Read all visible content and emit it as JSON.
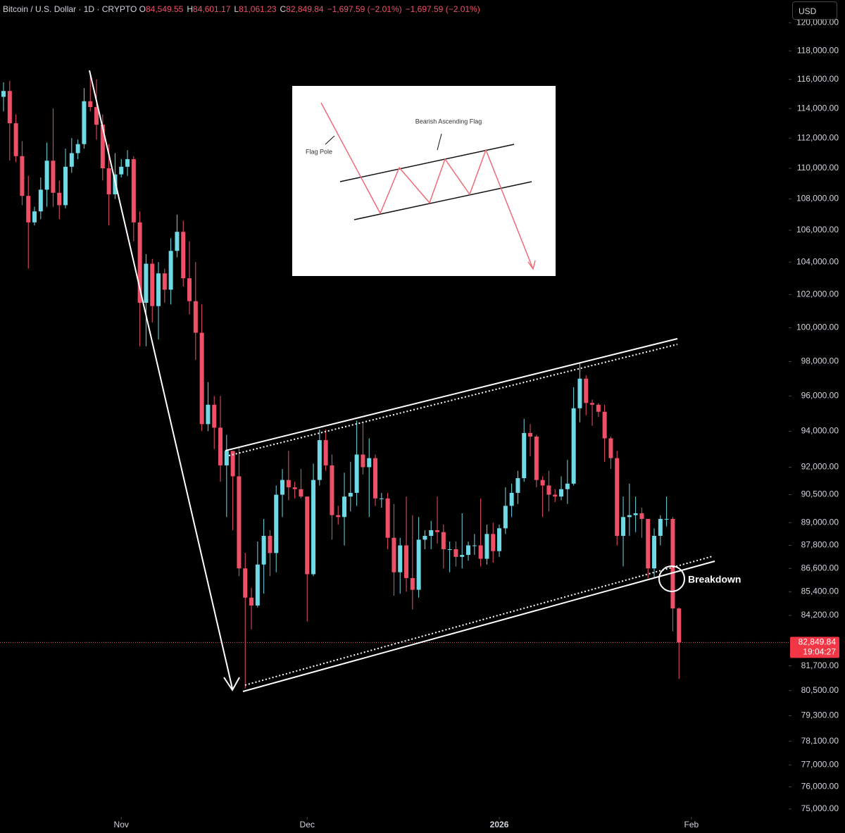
{
  "chart_data": {
    "type": "candlestick",
    "symbol": "Bitcoin / U.S. Dollar · 1D · CRYPTO",
    "ohlc_legend": [
      {
        "key": "O",
        "label": "84,549.55"
      },
      {
        "key": "H",
        "label": "84,601.17"
      },
      {
        "key": "L",
        "label": "81,061.23"
      },
      {
        "key": "C",
        "label": "82,849.84"
      }
    ],
    "change": [
      "−1,697.59 (−2.01%)",
      "−1,697.59 (−2.01%)"
    ],
    "currency": "USD",
    "last_price_label": "82,849.84",
    "countdown": "19:04:27",
    "up_color": "#6fd9e6",
    "down_color": "#ef5068",
    "log_scale": true,
    "grid": false,
    "open": [
      114800,
      115200,
      113000,
      110800,
      108200,
      106500,
      107200,
      108600,
      110500,
      108400,
      107600,
      110100,
      111000,
      111600,
      114500,
      114100,
      112900,
      110000,
      108300,
      109600,
      110100,
      110600,
      106500,
      101500,
      103900,
      101300,
      103300,
      102300,
      104700,
      105900,
      103000,
      101600,
      99700,
      94400,
      95500,
      94200,
      92100,
      92900,
      91500,
      86600,
      85100,
      84700,
      86800,
      88300,
      87400,
      90500,
      91300,
      90900,
      90800,
      90400,
      86300,
      91300,
      93500,
      92100,
      89400,
      89300,
      90400,
      90600,
      92700,
      92000,
      92500,
      90300,
      90300,
      88200,
      86400,
      87800,
      86100,
      85500,
      88100,
      88300,
      88600,
      88500,
      87600,
      87600,
      87200,
      87300,
      87800,
      87800,
      87100,
      88400,
      87500,
      88700,
      89900,
      90600,
      91400,
      93900,
      93700,
      91300,
      91000,
      90500,
      90400,
      90800,
      91100,
      95300,
      97000,
      95600,
      95500,
      95100,
      93600,
      92500,
      88300,
      89300,
      89400,
      89500,
      89200,
      86600,
      88300,
      89200,
      89200,
      84549.55
    ],
    "high": [
      115800,
      115900,
      113600,
      111800,
      109500,
      107500,
      109400,
      111700,
      114000,
      109200,
      111300,
      112000,
      111900,
      115400,
      116400,
      116000,
      113600,
      111600,
      111000,
      110600,
      111200,
      110800,
      107200,
      104500,
      104200,
      104000,
      103600,
      105500,
      107000,
      106600,
      105300,
      104000,
      101400,
      96800,
      96000,
      96000,
      93800,
      92900,
      93100,
      87400,
      85600,
      88000,
      89200,
      88600,
      91000,
      91900,
      92900,
      91200,
      91900,
      90400,
      92200,
      94100,
      94100,
      92700,
      89900,
      91700,
      92300,
      94600,
      94500,
      93600,
      92700,
      90600,
      90600,
      90000,
      88200,
      90400,
      89400,
      89300,
      88600,
      89100,
      90400,
      88900,
      88000,
      88000,
      89500,
      88000,
      88400,
      90300,
      88900,
      89000,
      88900,
      90900,
      91100,
      91800,
      94700,
      94400,
      93800,
      91500,
      91800,
      90800,
      91500,
      92400,
      96500,
      97900,
      97200,
      95800,
      95600,
      95500,
      93700,
      92900,
      90400,
      91100,
      90400,
      89800,
      89200,
      88700,
      89400,
      90400,
      89300,
      84601.17
    ],
    "low": [
      113800,
      110500,
      110400,
      107600,
      103600,
      106300,
      106700,
      107500,
      107500,
      106700,
      107400,
      109700,
      110600,
      111300,
      113800,
      111900,
      109200,
      106300,
      108000,
      109400,
      109500,
      105300,
      98900,
      98900,
      100300,
      99300,
      101500,
      101400,
      104300,
      102500,
      100800,
      98100,
      94000,
      94000,
      93000,
      91200,
      89300,
      88600,
      86200,
      80600,
      83500,
      84600,
      85300,
      86200,
      86400,
      89300,
      90200,
      90300,
      90300,
      83900,
      86200,
      91000,
      91800,
      88100,
      88900,
      87800,
      89600,
      89900,
      91600,
      89300,
      89900,
      89800,
      87600,
      85200,
      85300,
      85400,
      84500,
      85100,
      87600,
      87600,
      87900,
      86600,
      86400,
      86700,
      86600,
      87000,
      87300,
      86700,
      86800,
      86900,
      87200,
      88400,
      89300,
      90000,
      91200,
      92600,
      90900,
      89300,
      89600,
      90100,
      90200,
      90000,
      91000,
      94500,
      94900,
      94300,
      94800,
      92300,
      91900,
      87800,
      86700,
      88300,
      88500,
      88200,
      86100,
      86100,
      87800,
      88800,
      83400,
      81061.23
    ],
    "close": [
      115200,
      113000,
      110800,
      108200,
      106500,
      107200,
      108600,
      110500,
      108400,
      107600,
      110100,
      111000,
      111600,
      114500,
      114100,
      112900,
      110000,
      108300,
      109600,
      110100,
      110600,
      106500,
      101500,
      103900,
      101300,
      103300,
      102300,
      104700,
      105900,
      103000,
      101600,
      99700,
      94400,
      95500,
      94200,
      92100,
      92900,
      91500,
      86600,
      85100,
      84700,
      86800,
      88300,
      87400,
      90500,
      91300,
      90900,
      90800,
      90400,
      86300,
      91300,
      93500,
      92100,
      89400,
      89300,
      90400,
      90600,
      92700,
      92000,
      92500,
      90300,
      90300,
      88200,
      86400,
      87800,
      86100,
      85500,
      88100,
      88300,
      88600,
      88500,
      87600,
      87600,
      87200,
      87300,
      87800,
      87800,
      87100,
      88400,
      87500,
      88700,
      89900,
      90600,
      91400,
      93900,
      93700,
      91300,
      91000,
      90500,
      90400,
      90800,
      91100,
      95300,
      97000,
      95600,
      95500,
      95100,
      93600,
      92500,
      88300,
      89300,
      89400,
      89500,
      89200,
      86600,
      88300,
      89200,
      89200,
      84550,
      82849.84
    ],
    "xlim": [
      -0.57,
      126.7
    ],
    "xticks": [
      {
        "value": 19,
        "label": "Nov"
      },
      {
        "value": 49,
        "label": "Dec"
      },
      {
        "value": 80,
        "label": "2026"
      },
      {
        "value": 111,
        "label": "Feb"
      }
    ],
    "ylim": [
      74650,
      121640
    ],
    "yticks": [
      {
        "value": 75000,
        "label": "75,000.00"
      },
      {
        "value": 76000,
        "label": "76,000.00"
      },
      {
        "value": 77000,
        "label": "77,000.00"
      },
      {
        "value": 78100,
        "label": "78,100.00"
      },
      {
        "value": 79300,
        "label": "79,300.00"
      },
      {
        "value": 80500,
        "label": "80,500.00"
      },
      {
        "value": 81700,
        "label": "81,700.00"
      },
      {
        "value": 84200,
        "label": "84,200.00"
      },
      {
        "value": 85400,
        "label": "85,400.00"
      },
      {
        "value": 86600,
        "label": "86,600.00"
      },
      {
        "value": 87800,
        "label": "87,800.00"
      },
      {
        "value": 89000,
        "label": "89,000.00"
      },
      {
        "value": 90500,
        "label": "90,500.00"
      },
      {
        "value": 92000,
        "label": "92,000.00"
      },
      {
        "value": 94000,
        "label": "94,000.00"
      },
      {
        "value": 96000,
        "label": "96,000.00"
      },
      {
        "value": 98000,
        "label": "98,000.00"
      },
      {
        "value": 100000,
        "label": "100,000.00"
      },
      {
        "value": 102000,
        "label": "102,000.00"
      },
      {
        "value": 104000,
        "label": "104,000.00"
      },
      {
        "value": 106000,
        "label": "106,000.00"
      },
      {
        "value": 108000,
        "label": "108,000.00"
      },
      {
        "value": 110000,
        "label": "110,000.00"
      },
      {
        "value": 112000,
        "label": "112,000.00"
      },
      {
        "value": 114000,
        "label": "114,000.00"
      },
      {
        "value": 116000,
        "label": "116,000.00"
      },
      {
        "value": 118000,
        "label": "118,000.00"
      },
      {
        "value": 120000,
        "label": "120,000.00"
      }
    ],
    "annotations": {
      "breakdown": "Breakdown",
      "inset_title": "Bearish Ascending Flag",
      "inset_pole": "Flag Pole"
    }
  }
}
